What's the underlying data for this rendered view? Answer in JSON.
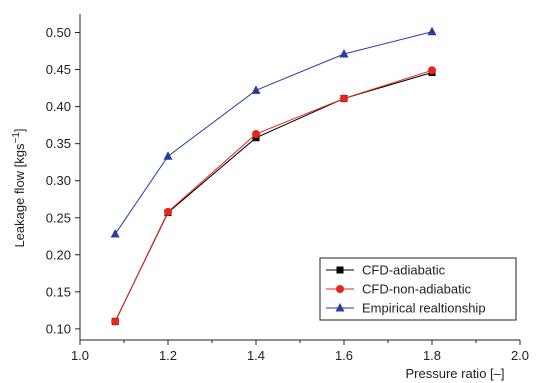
{
  "chart_data": {
    "type": "line",
    "xlabel": "Pressure ratio [–]",
    "ylabel_main": "Leakage flow [kgs",
    "ylabel_sup": "−1",
    "ylabel_close": "]",
    "xlim": [
      1.0,
      2.0
    ],
    "ylim": [
      0.085,
      0.525
    ],
    "xticks": [
      1.0,
      1.2,
      1.4,
      1.6,
      1.8,
      2.0
    ],
    "xtick_labels": [
      "1.0",
      "1.2",
      "1.4",
      "1.6",
      "1.8",
      "2.0"
    ],
    "yticks": [
      0.1,
      0.15,
      0.2,
      0.25,
      0.3,
      0.35,
      0.4,
      0.45,
      0.5
    ],
    "ytick_labels": [
      "0.10",
      "0.15",
      "0.20",
      "0.25",
      "0.30",
      "0.35",
      "0.40",
      "0.45",
      "0.50"
    ],
    "legend_position": "bottom-right",
    "grid": false,
    "series": [
      {
        "name": "CFD-adiabatic",
        "color": "#000000",
        "marker": "square",
        "x": [
          1.08,
          1.2,
          1.4,
          1.6,
          1.8
        ],
        "y": [
          0.11,
          0.257,
          0.358,
          0.411,
          0.446
        ]
      },
      {
        "name": "CFD-non-adiabatic",
        "color": "#e8251c",
        "marker": "circle",
        "x": [
          1.08,
          1.2,
          1.4,
          1.6,
          1.8
        ],
        "y": [
          0.11,
          0.258,
          0.363,
          0.411,
          0.449
        ]
      },
      {
        "name": "Empirical realtionship",
        "color": "#2a3c9c",
        "marker": "triangle",
        "x": [
          1.08,
          1.2,
          1.4,
          1.6,
          1.8
        ],
        "y": [
          0.228,
          0.333,
          0.422,
          0.471,
          0.501
        ]
      }
    ]
  }
}
